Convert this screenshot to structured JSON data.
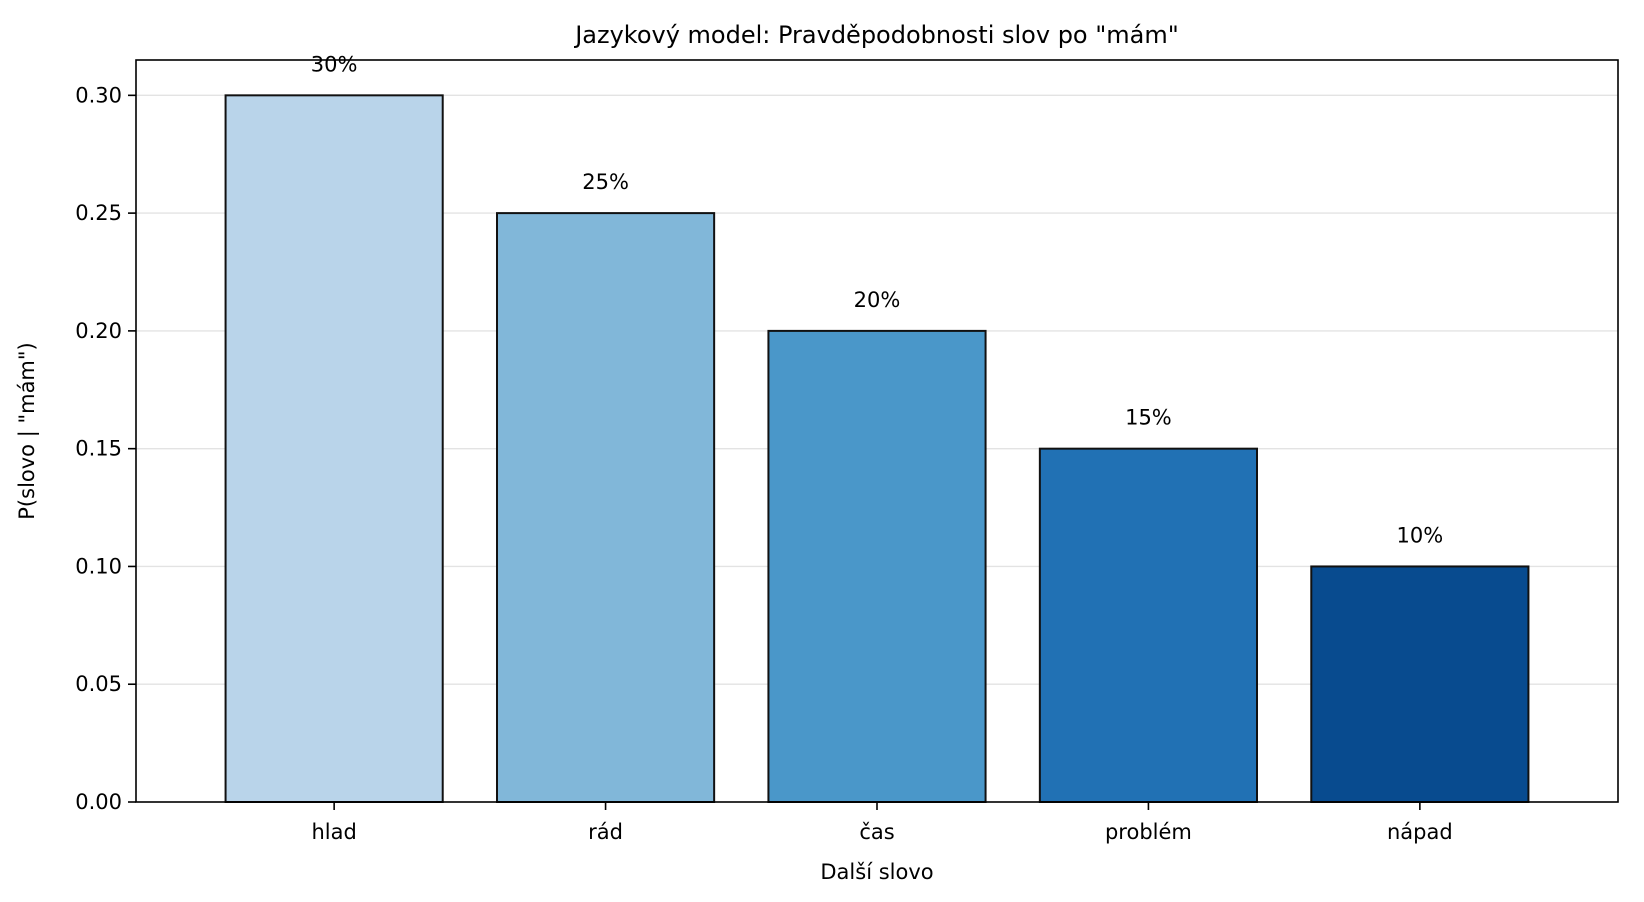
{
  "chart_data": {
    "type": "bar",
    "title": "Jazykový model: Pravděpodobnosti slov po \"mám\"",
    "xlabel": "Další slovo",
    "ylabel": "P(slovo | \"mám\")",
    "categories": [
      "hlad",
      "rád",
      "čas",
      "problém",
      "nápad"
    ],
    "values": [
      0.3,
      0.25,
      0.2,
      0.15,
      0.1
    ],
    "value_labels": [
      "30%",
      "25%",
      "20%",
      "15%",
      "10%"
    ],
    "colors": [
      "#b9d4ea",
      "#81b7d9",
      "#4a97c9",
      "#2171b4",
      "#084b8f"
    ],
    "ylim": [
      0,
      0.315
    ],
    "yticks": [
      0.0,
      0.05,
      0.1,
      0.15,
      0.2,
      0.25,
      0.3
    ],
    "ytick_labels": [
      "0.00",
      "0.05",
      "0.10",
      "0.15",
      "0.20",
      "0.25",
      "0.30"
    ],
    "grid": "y",
    "legend": "none"
  }
}
